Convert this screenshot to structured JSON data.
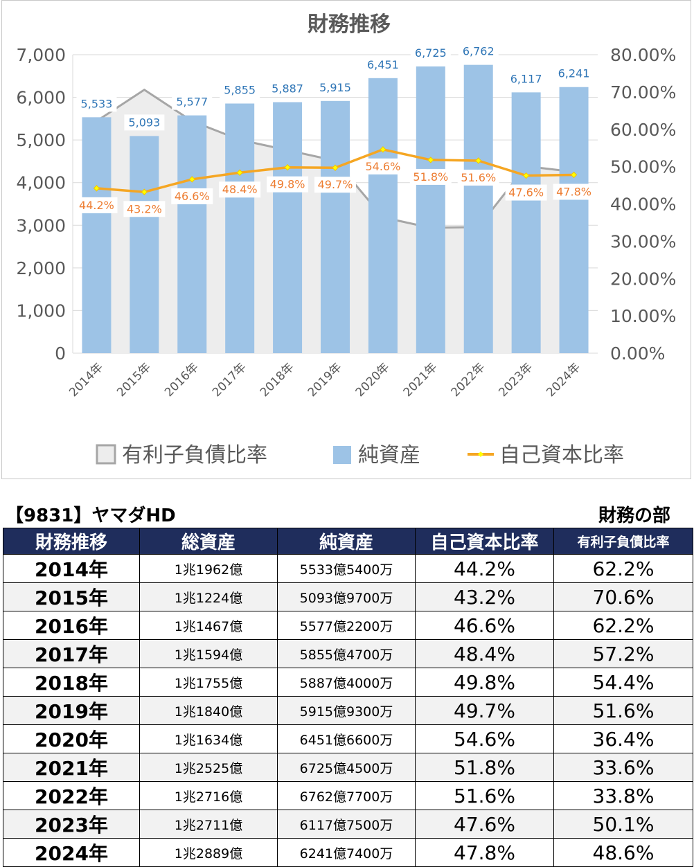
{
  "chart_data": {
    "type": "bar",
    "title": "財務推移",
    "categories": [
      "2014年",
      "2015年",
      "2016年",
      "2017年",
      "2018年",
      "2019年",
      "2020年",
      "2021年",
      "2022年",
      "2023年",
      "2024年"
    ],
    "series": [
      {
        "name": "有利子負債比率",
        "kind": "area",
        "axis": "right",
        "color": "#a6a6a6",
        "fill": "#ededed",
        "values": [
          62.2,
          70.6,
          62.2,
          57.2,
          54.4,
          51.6,
          36.4,
          33.6,
          33.8,
          50.1,
          48.6
        ]
      },
      {
        "name": "純資産",
        "kind": "bar",
        "axis": "left",
        "color": "#9dc3e6",
        "values": [
          5533,
          5093,
          5577,
          5855,
          5887,
          5915,
          6451,
          6725,
          6762,
          6117,
          6241
        ],
        "labels": [
          "5,533",
          "5,093",
          "5,577",
          "5,855",
          "5,887",
          "5,915",
          "6,451",
          "6,725",
          "6,762",
          "6,117",
          "6,241"
        ]
      },
      {
        "name": "自己資本比率",
        "kind": "line",
        "axis": "right",
        "color": "#f5a623",
        "values": [
          44.2,
          43.2,
          46.6,
          48.4,
          49.8,
          49.7,
          54.6,
          51.8,
          51.6,
          47.6,
          47.8
        ],
        "labels": [
          "44.2%",
          "43.2%",
          "46.6%",
          "48.4%",
          "49.8%",
          "49.7%",
          "54.6%",
          "51.8%",
          "51.6%",
          "47.6%",
          "47.8%"
        ]
      }
    ],
    "ylim_left": [
      0,
      7000
    ],
    "yticks_left": [
      "0",
      "1,000",
      "2,000",
      "3,000",
      "4,000",
      "5,000",
      "6,000",
      "7,000"
    ],
    "ylim_right": [
      0,
      80
    ],
    "yticks_right": [
      "0.00%",
      "10.00%",
      "20.00%",
      "30.00%",
      "40.00%",
      "50.00%",
      "60.00%",
      "70.00%",
      "80.00%"
    ],
    "grid": true,
    "legend_position": "bottom",
    "colors": {
      "bar_label": "#2e75b6",
      "line_label": "#ed7d31",
      "marker": "#ffff00",
      "grid": "#d9d9d9"
    }
  },
  "company_title": "【9831】ヤマダHD",
  "section_label": "財務の部",
  "table": {
    "headers": [
      "財務推移",
      "総資産",
      "純資産",
      "自己資本比率",
      "有利子負債比率"
    ],
    "rows": [
      [
        "2014年",
        "1兆1962億",
        "5533億5400万",
        "44.2%",
        "62.2%"
      ],
      [
        "2015年",
        "1兆1224億",
        "5093億9700万",
        "43.2%",
        "70.6%"
      ],
      [
        "2016年",
        "1兆1467億",
        "5577億2200万",
        "46.6%",
        "62.2%"
      ],
      [
        "2017年",
        "1兆1594億",
        "5855億4700万",
        "48.4%",
        "57.2%"
      ],
      [
        "2018年",
        "1兆1755億",
        "5887億4000万",
        "49.8%",
        "54.4%"
      ],
      [
        "2019年",
        "1兆1840億",
        "5915億9300万",
        "49.7%",
        "51.6%"
      ],
      [
        "2020年",
        "1兆1634億",
        "6451億6600万",
        "54.6%",
        "36.4%"
      ],
      [
        "2021年",
        "1兆2525億",
        "6725億4500万",
        "51.8%",
        "33.6%"
      ],
      [
        "2022年",
        "1兆2716億",
        "6762億7700万",
        "51.6%",
        "33.8%"
      ],
      [
        "2023年",
        "1兆2711億",
        "6117億7500万",
        "47.6%",
        "50.1%"
      ],
      [
        "2024年",
        "1兆2889億",
        "6241億7400万",
        "47.8%",
        "48.6%"
      ]
    ]
  }
}
